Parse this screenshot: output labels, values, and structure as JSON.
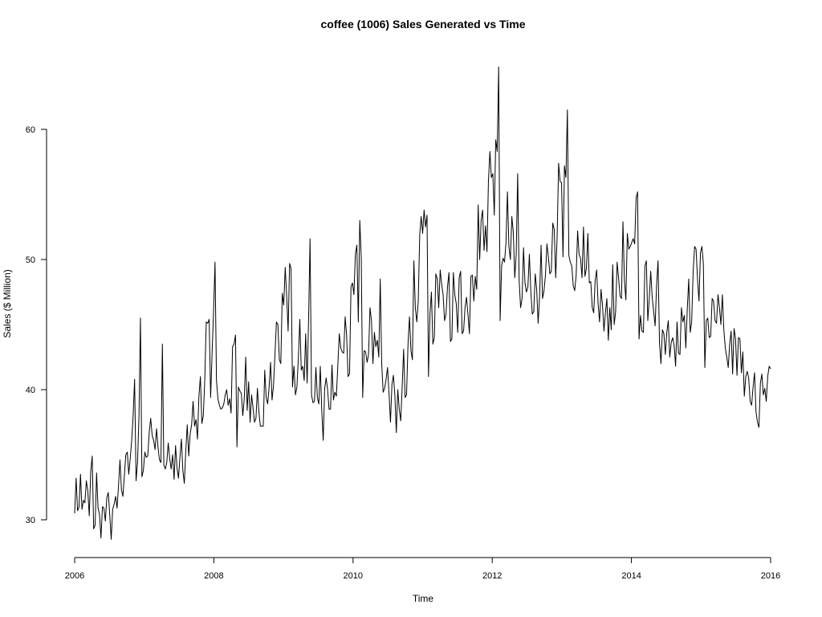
{
  "chart_data": {
    "type": "line",
    "title": "coffee (1006) Sales Generated vs Time",
    "xlabel": "Time",
    "ylabel": "Sales ($ Million)",
    "xlim": [
      2006,
      2016
    ],
    "ylim": [
      27.5,
      66
    ],
    "x_ticks": [
      2006,
      2008,
      2010,
      2012,
      2014,
      2016
    ],
    "y_ticks": [
      30,
      40,
      50,
      60
    ],
    "grid": false,
    "frequency": "weekly",
    "start": 2006,
    "series": [
      {
        "color": "#000000",
        "values": [
          30.5,
          33.2,
          30.7,
          31.0,
          33.5,
          30.8,
          31.5,
          31.3,
          33.0,
          32.2,
          30.3,
          33.7,
          34.9,
          29.3,
          29.6,
          33.6,
          30.9,
          30.4,
          28.6,
          31.0,
          30.9,
          29.9,
          31.7,
          32.1,
          30.4,
          28.5,
          30.8,
          31.2,
          31.8,
          30.9,
          32.6,
          34.6,
          32.3,
          31.8,
          33.4,
          35.0,
          35.2,
          33.5,
          34.7,
          36.1,
          38.0,
          40.8,
          33.0,
          34.4,
          38.0,
          45.5,
          33.3,
          33.8,
          35.2,
          34.8,
          34.9,
          36.7,
          37.8,
          36.5,
          36.1,
          35.4,
          37.0,
          35.6,
          34.6,
          34.4,
          43.5,
          34.2,
          33.9,
          34.4,
          35.9,
          34.7,
          33.9,
          35.0,
          33.1,
          35.7,
          34.0,
          33.2,
          34.8,
          36.2,
          33.8,
          32.8,
          35.3,
          37.3,
          34.9,
          36.6,
          37.3,
          39.1,
          37.2,
          37.7,
          36.2,
          39.5,
          41.0,
          37.4,
          38.0,
          40.8,
          45.2,
          45.1,
          45.4,
          39.4,
          42.8,
          46.0,
          49.8,
          40.7,
          39.3,
          38.8,
          38.5,
          38.6,
          38.9,
          39.6,
          40.0,
          38.8,
          39.3,
          38.2,
          43.3,
          43.5,
          44.2,
          35.6,
          40.2,
          39.9,
          39.7,
          38.0,
          39.3,
          42.5,
          38.4,
          40.6,
          37.5,
          39.6,
          38.6,
          37.5,
          37.8,
          40.1,
          38.3,
          37.2,
          37.2,
          37.2,
          41.5,
          39.4,
          38.9,
          40.2,
          42.1,
          39.2,
          40.3,
          42.7,
          45.2,
          45.0,
          42.3,
          42.0,
          47.4,
          46.5,
          49.4,
          47.2,
          44.5,
          49.7,
          49.3,
          40.2,
          41.8,
          39.6,
          40.2,
          42.4,
          45.4,
          41.5,
          41.8,
          40.7,
          44.3,
          40.5,
          45.4,
          51.6,
          39.6,
          39.0,
          39.1,
          41.7,
          39.4,
          38.9,
          41.8,
          38.4,
          36.1,
          40.1,
          40.9,
          40.0,
          38.5,
          38.5,
          41.9,
          39.2,
          39.8,
          39.5,
          41.9,
          44.3,
          43.2,
          42.9,
          42.8,
          45.6,
          44.2,
          41.0,
          41.2,
          47.9,
          48.2,
          47.3,
          50.4,
          51.1,
          45.2,
          53.0,
          50.2,
          39.4,
          43.0,
          42.9,
          42.1,
          42.7,
          46.3,
          45.3,
          42.0,
          44.4,
          43.3,
          43.8,
          42.5,
          48.5,
          42.0,
          39.8,
          40.1,
          40.8,
          41.7,
          39.7,
          37.5,
          40.4,
          41.1,
          39.6,
          36.7,
          40.0,
          38.5,
          37.6,
          40.2,
          43.1,
          39.4,
          39.6,
          43.5,
          45.6,
          43.0,
          42.3,
          49.9,
          46.3,
          45.2,
          46.8,
          51.9,
          53.3,
          52.0,
          53.8,
          52.5,
          53.4,
          41.0,
          45.8,
          47.5,
          43.5,
          44.0,
          48.9,
          48.5,
          46.3,
          49.2,
          48.1,
          47.3,
          45.3,
          45.8,
          47.9,
          49.0,
          43.7,
          43.9,
          49.0,
          47.3,
          46.6,
          44.4,
          48.6,
          49.1,
          44.3,
          44.5,
          46.3,
          47.1,
          45.8,
          44.3,
          48.7,
          48.8,
          46.8,
          48.7,
          47.7,
          54.2,
          50.0,
          53.0,
          53.8,
          50.7,
          52.6,
          50.6,
          56.0,
          58.3,
          56.3,
          56.6,
          53.4,
          59.2,
          58.3,
          64.8,
          45.3,
          49.5,
          50.1,
          49.8,
          51.3,
          55.2,
          51.0,
          50.0,
          53.3,
          52.1,
          48.6,
          50.4,
          56.6,
          48.4,
          46.3,
          47.0,
          50.9,
          48.2,
          47.5,
          47.9,
          50.4,
          47.5,
          45.8,
          46.0,
          48.9,
          47.7,
          45.1,
          47.2,
          51.1,
          47.0,
          47.6,
          48.8,
          51.2,
          50.2,
          48.9,
          49.1,
          52.8,
          52.3,
          48.6,
          51.8,
          57.4,
          56.0,
          55.9,
          50.2,
          57.2,
          56.3,
          61.5,
          50.3,
          49.8,
          49.5,
          48.0,
          47.6,
          48.8,
          52.2,
          50.4,
          50.1,
          48.6,
          52.5,
          48.7,
          49.3,
          52.0,
          48.2,
          48.3,
          46.3,
          45.9,
          48.4,
          49.2,
          46.6,
          45.2,
          47.7,
          46.5,
          44.5,
          45.9,
          47.0,
          43.8,
          46.3,
          44.6,
          49.6,
          45.0,
          46.0,
          49.8,
          48.6,
          47.2,
          47.0,
          52.9,
          48.4,
          46.9,
          52.0,
          50.8,
          51.0,
          51.3,
          51.6,
          51.2,
          54.7,
          55.2,
          43.9,
          45.7,
          44.5,
          44.4,
          49.5,
          49.9,
          45.3,
          47.0,
          49.1,
          47.1,
          46.0,
          44.9,
          48.0,
          49.9,
          43.6,
          42.0,
          44.6,
          44.3,
          42.7,
          44.4,
          45.3,
          42.5,
          43.6,
          44.0,
          43.4,
          41.8,
          45.2,
          42.8,
          42.7,
          46.3,
          45.2,
          45.7,
          43.2,
          46.2,
          48.5,
          44.4,
          45.2,
          49.0,
          51.0,
          50.8,
          48.5,
          46.8,
          50.5,
          51.0,
          49.7,
          41.7,
          45.3,
          45.5,
          44.0,
          44.1,
          47.0,
          46.8,
          45.3,
          45.1,
          47.3,
          46.3,
          45.0,
          47.3,
          44.6,
          43.2,
          42.5,
          41.7,
          43.5,
          44.5,
          41.2,
          44.7,
          43.9,
          41.1,
          44.0,
          43.9,
          41.3,
          42.9,
          39.5,
          41.0,
          41.4,
          40.9,
          39.1,
          38.8,
          40.2,
          41.3,
          38.3,
          37.5,
          37.1,
          40.5,
          41.2,
          39.6,
          40.1,
          39.1,
          41.0,
          41.8,
          41.6
        ]
      }
    ]
  }
}
